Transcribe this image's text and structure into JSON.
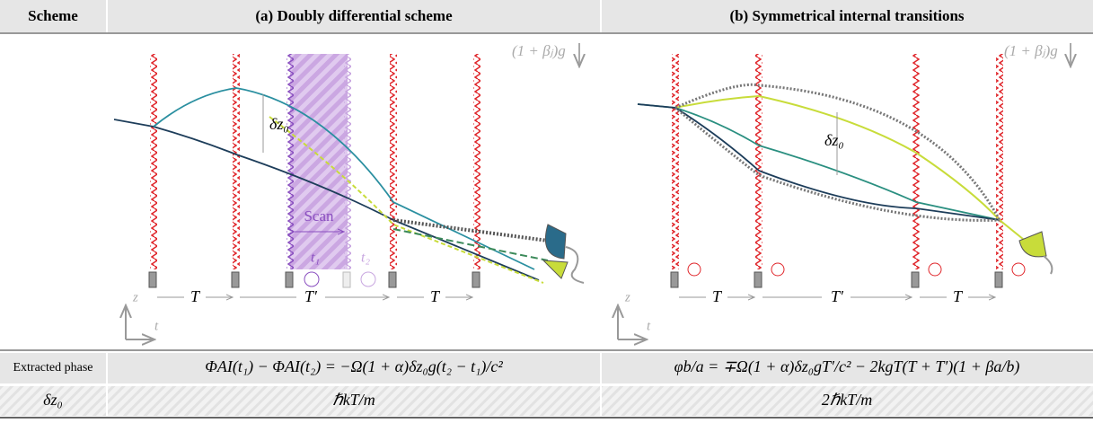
{
  "header": {
    "scheme": "Scheme",
    "panel_a": "(a) Doubly differential scheme",
    "panel_b": "(b) Symmetrical internal transitions"
  },
  "panel_a": {
    "gravity": "(1 + βⱼ)g",
    "delta_z0": "δz₀",
    "scan": "Scan",
    "t1": "t₁",
    "t2": "t₂",
    "intervals": [
      "T",
      "T′",
      "T"
    ],
    "axis_z": "z",
    "axis_t": "t"
  },
  "panel_b": {
    "gravity": "(1 + βⱼ)g",
    "delta_z0": "δz₀",
    "intervals": [
      "T",
      "T′",
      "T"
    ],
    "axis_z": "z",
    "axis_t": "t"
  },
  "table": {
    "rows": [
      [
        "Extracted phase",
        "ΦAI(t₁) − ΦAI(t₂) = −Ω(1 + α)δz₀g(t₂ − t₁)/c²",
        "φb/a = ∓Ω(1 + α)δz₀gT′/c² − 2kgT(T + T′)(1 + βa/b)"
      ],
      [
        "δz₀",
        "ℏkT/m",
        "2ℏkT/m"
      ]
    ]
  }
}
